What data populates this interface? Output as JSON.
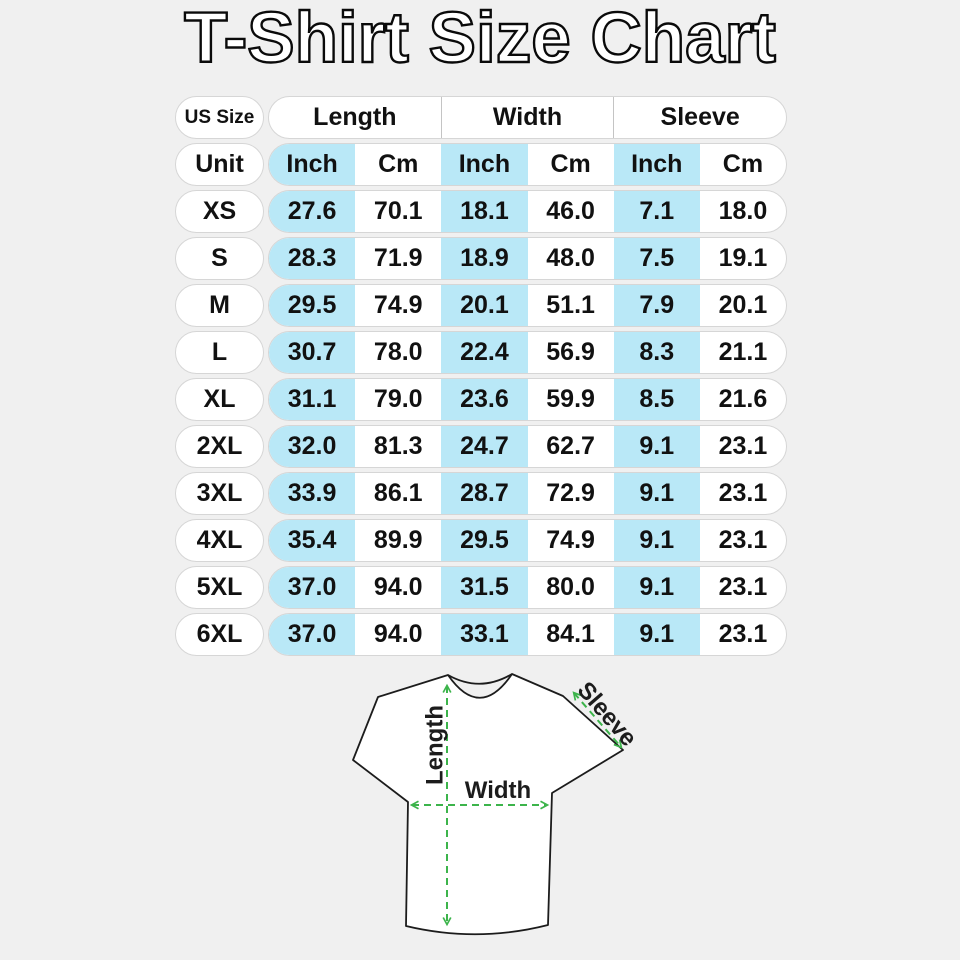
{
  "title": "T-Shirt Size Chart",
  "colors": {
    "background": "#f0f0f0",
    "highlight": "#b9e8f7",
    "arrow": "#3cb44b",
    "pill_border": "#d6d6d6",
    "text": "#111111"
  },
  "table": {
    "corner_label": "US Size",
    "unit_label": "Unit",
    "groups": [
      {
        "label": "Length"
      },
      {
        "label": "Width"
      },
      {
        "label": "Sleeve"
      }
    ],
    "unit_headers": [
      "Inch",
      "Cm",
      "Inch",
      "Cm",
      "Inch",
      "Cm"
    ],
    "rows": [
      {
        "size": "XS",
        "values": [
          "27.6",
          "70.1",
          "18.1",
          "46.0",
          "7.1",
          "18.0"
        ]
      },
      {
        "size": "S",
        "values": [
          "28.3",
          "71.9",
          "18.9",
          "48.0",
          "7.5",
          "19.1"
        ]
      },
      {
        "size": "M",
        "values": [
          "29.5",
          "74.9",
          "20.1",
          "51.1",
          "7.9",
          "20.1"
        ]
      },
      {
        "size": "L",
        "values": [
          "30.7",
          "78.0",
          "22.4",
          "56.9",
          "8.3",
          "21.1"
        ]
      },
      {
        "size": "XL",
        "values": [
          "31.1",
          "79.0",
          "23.6",
          "59.9",
          "8.5",
          "21.6"
        ]
      },
      {
        "size": "2XL",
        "values": [
          "32.0",
          "81.3",
          "24.7",
          "62.7",
          "9.1",
          "23.1"
        ]
      },
      {
        "size": "3XL",
        "values": [
          "33.9",
          "86.1",
          "28.7",
          "72.9",
          "9.1",
          "23.1"
        ]
      },
      {
        "size": "4XL",
        "values": [
          "35.4",
          "89.9",
          "29.5",
          "74.9",
          "9.1",
          "23.1"
        ]
      },
      {
        "size": "5XL",
        "values": [
          "37.0",
          "94.0",
          "31.5",
          "80.0",
          "9.1",
          "23.1"
        ]
      },
      {
        "size": "6XL",
        "values": [
          "37.0",
          "94.0",
          "33.1",
          "84.1",
          "9.1",
          "23.1"
        ]
      }
    ]
  },
  "diagram": {
    "length_label": "Length",
    "width_label": "Width",
    "sleeve_label": "Sleeve"
  },
  "chart_data": {
    "type": "table",
    "title": "T-Shirt Size Chart",
    "columns": [
      "US Size",
      "Length Inch",
      "Length Cm",
      "Width Inch",
      "Width Cm",
      "Sleeve Inch",
      "Sleeve Cm"
    ],
    "rows": [
      [
        "XS",
        27.6,
        70.1,
        18.1,
        46.0,
        7.1,
        18.0
      ],
      [
        "S",
        28.3,
        71.9,
        18.9,
        48.0,
        7.5,
        19.1
      ],
      [
        "M",
        29.5,
        74.9,
        20.1,
        51.1,
        7.9,
        20.1
      ],
      [
        "L",
        30.7,
        78.0,
        22.4,
        56.9,
        8.3,
        21.1
      ],
      [
        "XL",
        31.1,
        79.0,
        23.6,
        59.9,
        8.5,
        21.6
      ],
      [
        "2XL",
        32.0,
        81.3,
        24.7,
        62.7,
        9.1,
        23.1
      ],
      [
        "3XL",
        33.9,
        86.1,
        28.7,
        72.9,
        9.1,
        23.1
      ],
      [
        "4XL",
        35.4,
        89.9,
        29.5,
        74.9,
        9.1,
        23.1
      ],
      [
        "5XL",
        37.0,
        94.0,
        31.5,
        80.0,
        9.1,
        23.1
      ],
      [
        "6XL",
        37.0,
        94.0,
        33.1,
        84.1,
        9.1,
        23.1
      ]
    ],
    "notes": "Inch columns highlighted light blue; diagram shows Length (vertical), Width (horizontal), Sleeve (diagonal) measurement arrows on a t-shirt."
  }
}
